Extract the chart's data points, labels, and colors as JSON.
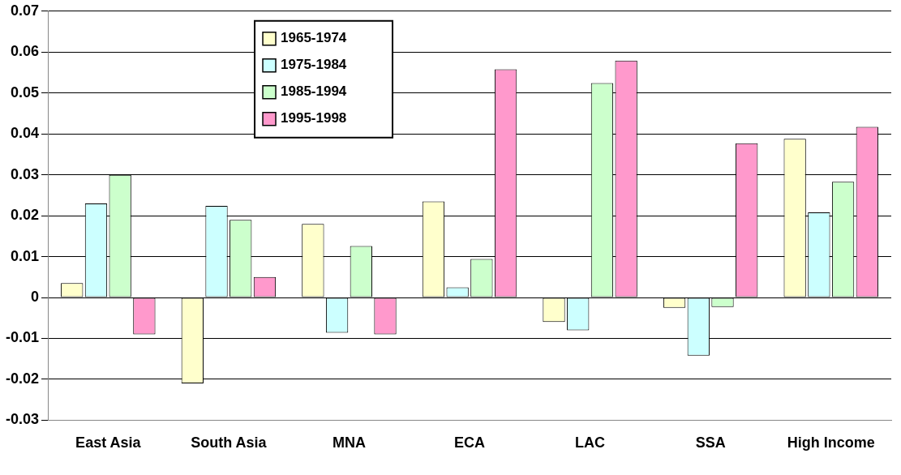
{
  "chart_data": {
    "type": "bar",
    "categories": [
      "East Asia",
      "South Asia",
      "MNA",
      "ECA",
      "LAC",
      "SSA",
      "High Income"
    ],
    "series": [
      {
        "name": "1965-1974",
        "color": "#ffffcc",
        "values": [
          0.0035,
          -0.021,
          0.018,
          0.0235,
          -0.006,
          -0.0025,
          0.0388
        ]
      },
      {
        "name": "1975-1984",
        "color": "#ccffff",
        "values": [
          0.023,
          0.0224,
          -0.0086,
          0.0025,
          -0.008,
          -0.0142,
          0.0208
        ]
      },
      {
        "name": "1985-1994",
        "color": "#ccffcc",
        "values": [
          0.03,
          0.019,
          0.0126,
          0.0094,
          0.0524,
          -0.0023,
          0.0283
        ]
      },
      {
        "name": "1995-1998",
        "color": "#ff99cc",
        "values": [
          -0.009,
          0.005,
          -0.009,
          0.0558,
          0.0579,
          0.0377,
          0.0417
        ]
      }
    ],
    "ylim": [
      -0.03,
      0.07
    ],
    "yticks": [
      -0.03,
      -0.02,
      -0.01,
      0,
      0.01,
      0.02,
      0.03,
      0.04,
      0.05,
      0.06,
      0.07
    ],
    "grid": "y",
    "legend": "top left"
  }
}
